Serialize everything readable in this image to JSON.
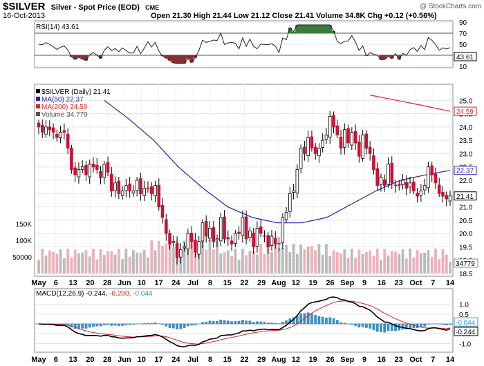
{
  "header": {
    "symbol": "$SILVER",
    "name": "Silver - Spot Price (EOD)",
    "exchange": "CME",
    "date": "16-Oct-2013",
    "stats": "Open 21.30  High 21.44  Low 21.12  Close 21.41  Volume 34.8K  Chg +0.12 (+0.56%)",
    "watermark": "@ StockCharts.com"
  },
  "rsi": {
    "label": "RSI(14) 43.61",
    "last": 43.61,
    "ticks": [
      "90",
      "70",
      "50",
      "30",
      "10"
    ],
    "value_box": "43.61"
  },
  "price": {
    "legend": [
      {
        "text": "$SILVER (Daily) 21.41",
        "color": "#000000"
      },
      {
        "text": "MA(50) 22.37",
        "color": "#2222aa"
      },
      {
        "text": "MA(200) 24.59",
        "color": "#dd2222"
      },
      {
        "text": "Volume 34,779",
        "color": "#555555"
      }
    ],
    "ticks": [
      "25.0",
      "24.5",
      "24.0",
      "23.5",
      "23.0",
      "22.5",
      "22.0",
      "21.5",
      "21.0",
      "20.5",
      "20.0",
      "19.5",
      "19.0",
      "18.5"
    ],
    "boxes": [
      {
        "text": "24.59",
        "color": "#dd2222"
      },
      {
        "text": "22.37",
        "color": "#2222aa"
      },
      {
        "text": "21.41",
        "color": "#000000"
      }
    ],
    "volume_ticks": [
      "150K",
      "100K",
      "50000"
    ],
    "volume_box": "34779"
  },
  "macd": {
    "label_parts": [
      {
        "text": "MACD(12,26,9) -0.244, ",
        "color": "#000000"
      },
      {
        "text": "-0.200, ",
        "color": "#dd2222"
      },
      {
        "text": "-0.044",
        "color": "#3a8fc8"
      }
    ],
    "ticks": [
      "1.0",
      "0.5",
      "0.0",
      "-0.5",
      "-1.0"
    ],
    "boxes": [
      {
        "text": "-0.044",
        "color": "#3a8fc8"
      },
      {
        "text": "-0.244",
        "color": "#000000"
      }
    ]
  },
  "x_labels": [
    "May",
    "6",
    "13",
    "20",
    "28",
    "Jun",
    "10",
    "17",
    "24",
    "Jul",
    "8",
    "15",
    "22",
    "29",
    "Aug",
    "12",
    "19",
    "26",
    "Sep",
    "9",
    "16",
    "23",
    "Oct",
    "7",
    "14"
  ],
  "colors": {
    "up": "#ffffff",
    "down": "#cc1133",
    "ma50": "#2222aa",
    "ma200": "#dd2222",
    "macd_hist": "#3a8fc8",
    "vol_up": "#bbbbbb",
    "vol_down": "#f0b0b8",
    "rsi_over": "#3a7a3a",
    "rsi_under": "#8a3030"
  },
  "chart_data": {
    "type": "candlestick",
    "x_months": [
      "May",
      "Jun",
      "Jul",
      "Aug",
      "Sep",
      "Oct"
    ],
    "price_ylim": [
      18.5,
      25.5
    ],
    "close_series": [
      24.0,
      23.8,
      24.0,
      23.9,
      23.8,
      23.6,
      23.8,
      23.8,
      23.2,
      22.4,
      22.2,
      22.4,
      22.5,
      22.2,
      22.6,
      22.5,
      22.4,
      22.1,
      22.6,
      22.3,
      21.6,
      21.9,
      21.5,
      21.6,
      21.8,
      21.6,
      21.6,
      22.0,
      21.5,
      21.7,
      21.7,
      21.5,
      21.8,
      21.0,
      20.6,
      20.0,
      19.6,
      19.7,
      19.1,
      19.4,
      19.5,
      20.0,
      19.7,
      19.3,
      19.7,
      20.4,
      19.9,
      20.2,
      19.7,
      19.8,
      20.6,
      19.8,
      19.8,
      19.6,
      20.0,
      20.0,
      20.6,
      19.8,
      20.1,
      19.5,
      20.2,
      20.0,
      19.9,
      19.5,
      19.9,
      19.6,
      19.6,
      20.6,
      20.8,
      21.5,
      21.6,
      22.4,
      23.2,
      23.0,
      23.6,
      23.2,
      23.0,
      23.2,
      23.5,
      23.7,
      24.4,
      24.0,
      23.7,
      23.2,
      23.9,
      23.4,
      23.8,
      23.4,
      22.9,
      23.7,
      23.2,
      23.0,
      22.4,
      21.8,
      22.1,
      21.8,
      22.6,
      21.9,
      21.8,
      21.8,
      22.0,
      21.7,
      21.9,
      21.6,
      21.4,
      21.6,
      21.8,
      22.5,
      22.2,
      21.9,
      21.5,
      21.4,
      21.3,
      21.41
    ],
    "ma50_series": [
      25.0,
      24.3,
      23.5,
      22.5,
      21.7,
      21.0,
      20.6,
      20.4,
      20.4,
      20.6,
      21.1,
      21.6,
      22.0,
      22.2,
      22.37
    ],
    "ma200_series": [
      25.2,
      25.0,
      24.8,
      24.59
    ],
    "volume_ylim": [
      0,
      200000
    ],
    "last_volume": 34779,
    "rsi_last": 43.61,
    "rsi_ylim": [
      10,
      90
    ],
    "macd_last": -0.244,
    "signal_last": -0.2,
    "hist_last": -0.044,
    "macd_ylim": [
      -1.3,
      1.3
    ]
  }
}
